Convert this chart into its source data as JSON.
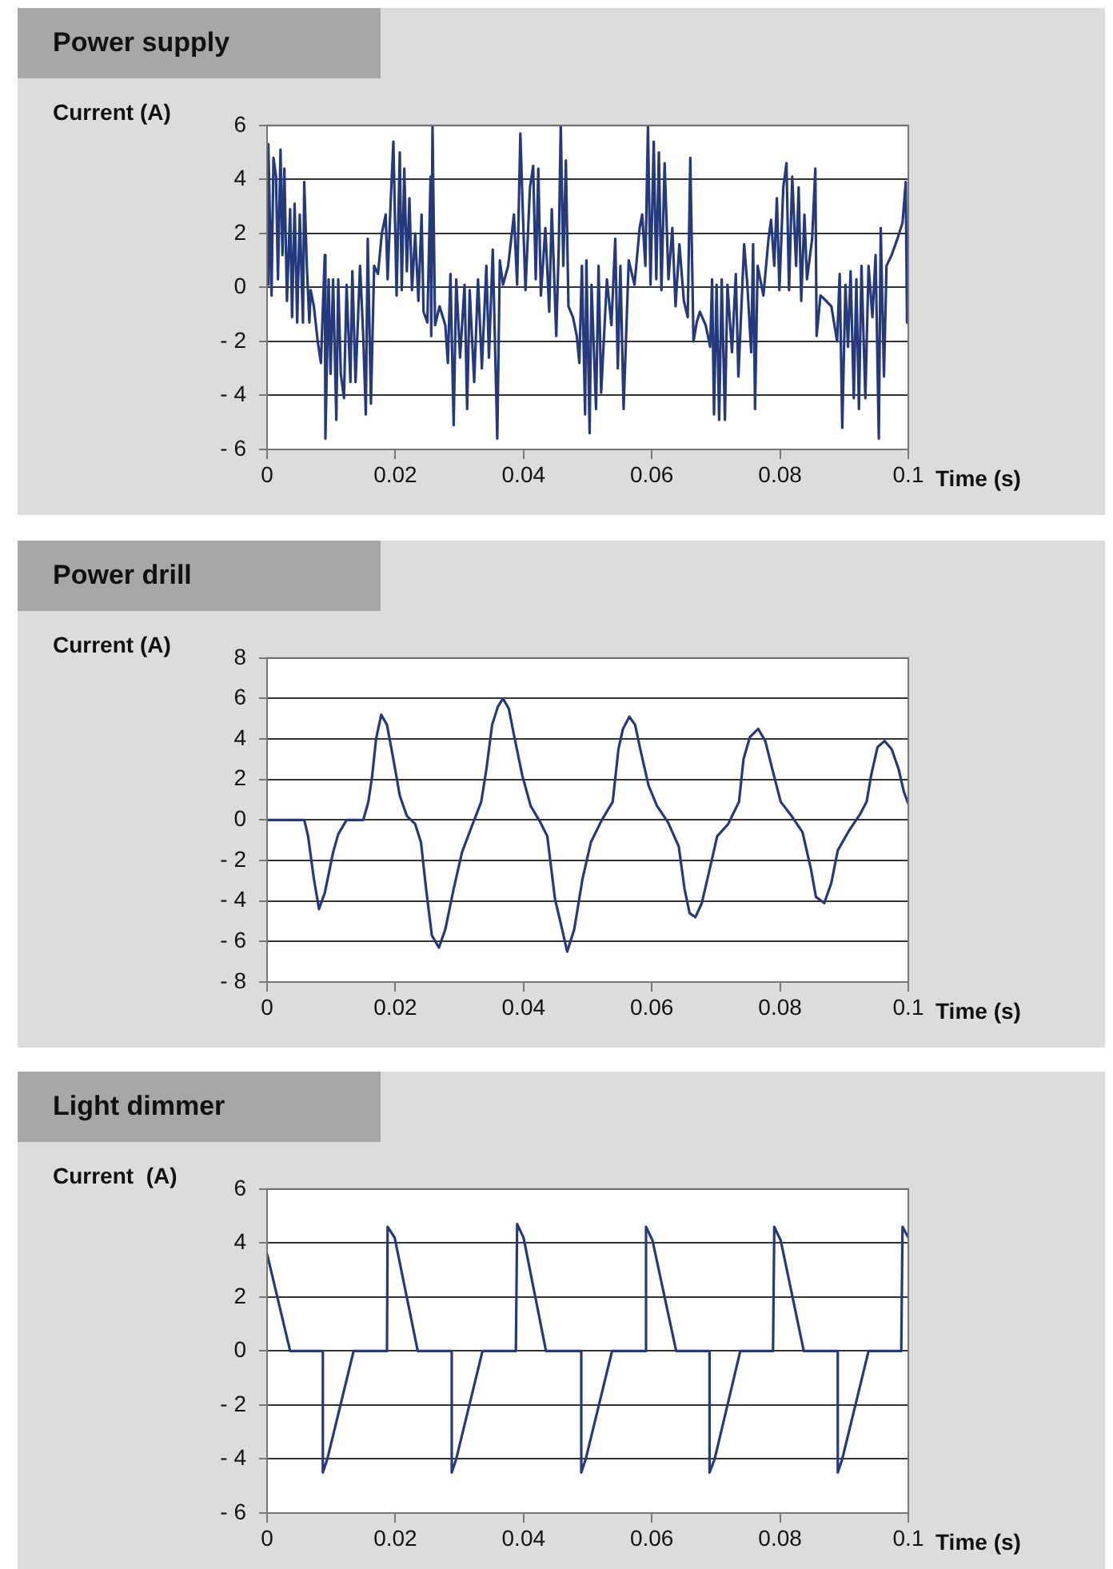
{
  "chart_data": [
    {
      "type": "line",
      "title": "Power supply",
      "ylabel": "Current (A)",
      "xlabel": "Time (s)",
      "color": "#253a7c",
      "marker": "none",
      "grid": "y",
      "xlim": [
        0,
        0.1
      ],
      "xticks": [
        0,
        0.02,
        0.04,
        0.06,
        0.08,
        0.1
      ],
      "ylim": [
        -6,
        6
      ],
      "yticks": [
        {
          "value": -6,
          "label": "- 6"
        },
        {
          "value": -4,
          "label": "- 4"
        },
        {
          "value": -2,
          "label": "- 2"
        },
        0,
        2,
        4,
        6
      ],
      "x": [
        0,
        0.0002,
        0.0007,
        0.001,
        0.0014,
        0.0017,
        0.0021,
        0.0024,
        0.0027,
        0.0031,
        0.0036,
        0.0039,
        0.0043,
        0.0047,
        0.0051,
        0.0056,
        0.0058,
        0.0062,
        0.0066,
        0.0068,
        0.0073,
        0.0079,
        0.0084,
        0.009,
        0.0091,
        0.0096,
        0.0099,
        0.0103,
        0.0108,
        0.0111,
        0.0115,
        0.012,
        0.0124,
        0.013,
        0.0133,
        0.0138,
        0.0145,
        0.015,
        0.0154,
        0.0157,
        0.0162,
        0.0167,
        0.0173,
        0.0179,
        0.0185,
        0.0188,
        0.0193,
        0.0197,
        0.0202,
        0.0207,
        0.021,
        0.0214,
        0.0218,
        0.0222,
        0.0226,
        0.0231,
        0.0236,
        0.0241,
        0.0244,
        0.025,
        0.0255,
        0.0256,
        0.0258,
        0.0262,
        0.0269,
        0.0278,
        0.0282,
        0.0286,
        0.0291,
        0.0295,
        0.0301,
        0.0308,
        0.0312,
        0.0316,
        0.0323,
        0.0329,
        0.0335,
        0.0342,
        0.0346,
        0.0352,
        0.0359,
        0.0363,
        0.0368,
        0.0376,
        0.0385,
        0.039,
        0.0395,
        0.0399,
        0.0403,
        0.041,
        0.0415,
        0.0419,
        0.0423,
        0.0427,
        0.0434,
        0.044,
        0.0444,
        0.0451,
        0.0455,
        0.0458,
        0.0462,
        0.0466,
        0.047,
        0.0477,
        0.0483,
        0.0487,
        0.0491,
        0.0496,
        0.0498,
        0.0503,
        0.0506,
        0.0513,
        0.0517,
        0.0521,
        0.053,
        0.0537,
        0.0543,
        0.0547,
        0.0551,
        0.0556,
        0.0564,
        0.0573,
        0.0581,
        0.0585,
        0.059,
        0.0594,
        0.0598,
        0.0603,
        0.0607,
        0.0611,
        0.0615,
        0.062,
        0.0626,
        0.0632,
        0.0637,
        0.0643,
        0.065,
        0.0656,
        0.066,
        0.0665,
        0.067,
        0.0675,
        0.0684,
        0.0691,
        0.0694,
        0.0697,
        0.0701,
        0.0705,
        0.0709,
        0.0714,
        0.0718,
        0.0725,
        0.0731,
        0.0735,
        0.0744,
        0.0749,
        0.0755,
        0.0758,
        0.0761,
        0.0765,
        0.0774,
        0.0782,
        0.0786,
        0.0791,
        0.0795,
        0.0799,
        0.0805,
        0.081,
        0.0814,
        0.0819,
        0.0825,
        0.0829,
        0.0833,
        0.0838,
        0.0842,
        0.085,
        0.0855,
        0.0857,
        0.0863,
        0.0872,
        0.088,
        0.0889,
        0.0893,
        0.0897,
        0.0902,
        0.0906,
        0.091,
        0.0915,
        0.0919,
        0.0923,
        0.0927,
        0.0933,
        0.0938,
        0.0944,
        0.0949,
        0.0954,
        0.0957,
        0.0962,
        0.0966,
        0.0974,
        0.0983,
        0.0991,
        0.0996,
        0.0998,
        0.1
      ],
      "values": [
        0.1,
        5.3,
        -0.3,
        4.8,
        4.1,
        0.3,
        5.1,
        1.2,
        4.4,
        -0.5,
        2.9,
        -1.1,
        3.1,
        -1.3,
        2.7,
        -1.3,
        3.9,
        0.8,
        -1.3,
        -0.1,
        -0.7,
        -2.0,
        -2.8,
        1.2,
        -5.6,
        0.3,
        -3.2,
        0.3,
        -4.9,
        0.3,
        -3.2,
        -4.1,
        0.1,
        -3.5,
        0.6,
        -3.5,
        0.8,
        -1.8,
        -4.7,
        1.8,
        -4.3,
        0.8,
        0.5,
        2.0,
        2.7,
        0.3,
        3.3,
        5.4,
        -0.3,
        5.0,
        -0.1,
        4.4,
        0.6,
        3.3,
        -0.1,
        2.0,
        -0.5,
        2.7,
        -0.9,
        -1.3,
        4.1,
        -1.8,
        6.0,
        -1.4,
        -0.7,
        -1.4,
        -2.8,
        0.5,
        -5.1,
        0.3,
        -2.6,
        0.1,
        -4.5,
        -0.1,
        -3.5,
        0.3,
        -3.0,
        0.8,
        -2.6,
        1.4,
        -5.6,
        1.0,
        0.1,
        0.8,
        2.7,
        0.1,
        5.7,
        2.7,
        -0.1,
        3.7,
        4.5,
        0.3,
        4.4,
        -0.3,
        2.2,
        -0.9,
        2.9,
        -1.8,
        1.6,
        6.0,
        0.8,
        4.7,
        -0.7,
        -1.1,
        -1.8,
        -2.8,
        0.8,
        -4.7,
        1.0,
        -5.4,
        0.1,
        -4.5,
        0.8,
        -3.9,
        0.3,
        -1.4,
        1.8,
        -3.0,
        0.8,
        -4.5,
        1.0,
        0.1,
        2.2,
        2.7,
        0.8,
        6.0,
        0.1,
        5.4,
        0.3,
        5.0,
        -0.1,
        4.6,
        0.3,
        2.2,
        -0.7,
        1.6,
        -0.5,
        -1.1,
        4.8,
        -2.0,
        -1.3,
        -0.9,
        -1.4,
        -2.2,
        0.3,
        -4.7,
        0.1,
        -4.9,
        0.3,
        -4.9,
        0.1,
        -2.4,
        0.5,
        -3.3,
        1.6,
        0.1,
        -2.4,
        1.6,
        -4.5,
        0.8,
        -0.3,
        1.8,
        2.5,
        0.8,
        3.3,
        -0.1,
        3.7,
        4.6,
        -0.1,
        4.1,
        0.8,
        3.7,
        -0.5,
        2.7,
        0.3,
        1.8,
        4.4,
        -1.8,
        -0.3,
        -0.5,
        -0.7,
        -2.0,
        0.5,
        -5.2,
        0.1,
        -2.2,
        0.6,
        -4.1,
        0.3,
        -4.5,
        0.8,
        -4.1,
        0.8,
        -1.1,
        1.2,
        -5.6,
        2.2,
        -3.3,
        0.8,
        1.2,
        1.8,
        2.4,
        3.9,
        -1.3,
        1.8
      ]
    },
    {
      "type": "line",
      "title": "Power drill",
      "ylabel": "Current (A)",
      "xlabel": "Time (s)",
      "color": "#253a7c",
      "marker": "none",
      "grid": "y",
      "xlim": [
        0,
        0.1
      ],
      "xticks": [
        0,
        0.02,
        0.04,
        0.06,
        0.08,
        0.1
      ],
      "ylim": [
        -8,
        8
      ],
      "yticks": [
        {
          "value": -8,
          "label": "- 8"
        },
        {
          "value": -6,
          "label": "- 6"
        },
        {
          "value": -4,
          "label": "- 4"
        },
        {
          "value": -2,
          "label": "- 2"
        },
        0,
        2,
        4,
        6,
        8
      ],
      "x": [
        0,
        0.0058,
        0.0064,
        0.0073,
        0.0081,
        0.009,
        0.0103,
        0.0111,
        0.0124,
        0.015,
        0.0158,
        0.0164,
        0.017,
        0.0178,
        0.0187,
        0.0197,
        0.0207,
        0.0218,
        0.0231,
        0.024,
        0.0248,
        0.0257,
        0.0268,
        0.0278,
        0.0291,
        0.0304,
        0.0317,
        0.0334,
        0.0342,
        0.0351,
        0.036,
        0.0368,
        0.0377,
        0.0385,
        0.0398,
        0.0411,
        0.0426,
        0.0437,
        0.0449,
        0.0458,
        0.0468,
        0.0479,
        0.0492,
        0.0505,
        0.0522,
        0.0539,
        0.0548,
        0.0555,
        0.0565,
        0.0574,
        0.0582,
        0.0595,
        0.0608,
        0.0625,
        0.0642,
        0.0651,
        0.0659,
        0.0668,
        0.0678,
        0.0689,
        0.0702,
        0.0719,
        0.0736,
        0.0743,
        0.0753,
        0.0766,
        0.0777,
        0.0788,
        0.0801,
        0.0818,
        0.0835,
        0.0848,
        0.0856,
        0.0869,
        0.088,
        0.089,
        0.0908,
        0.0925,
        0.0935,
        0.0942,
        0.0952,
        0.0963,
        0.0974,
        0.0985,
        0.0993,
        0.1
      ],
      "values": [
        0,
        0,
        -0.8,
        -2.9,
        -4.4,
        -3.6,
        -1.6,
        -0.7,
        0,
        0,
        0.9,
        2.2,
        4.0,
        5.2,
        4.7,
        3.0,
        1.2,
        0.2,
        -0.2,
        -1.1,
        -3.4,
        -5.7,
        -6.3,
        -5.4,
        -3.4,
        -1.6,
        -0.5,
        0.9,
        2.5,
        4.7,
        5.6,
        6.0,
        5.5,
        4.2,
        2.2,
        0.7,
        -0.1,
        -0.8,
        -3.9,
        -5.1,
        -6.5,
        -5.4,
        -2.9,
        -1.1,
        0,
        0.9,
        3.5,
        4.5,
        5.1,
        4.7,
        3.5,
        1.7,
        0.7,
        -0.1,
        -1.3,
        -3.4,
        -4.6,
        -4.8,
        -4.1,
        -2.6,
        -0.8,
        -0.2,
        0.9,
        3.0,
        4.1,
        4.5,
        3.9,
        2.5,
        0.9,
        0.2,
        -0.6,
        -2.4,
        -3.8,
        -4.1,
        -3.1,
        -1.5,
        -0.5,
        0.3,
        0.9,
        2.2,
        3.6,
        3.9,
        3.5,
        2.5,
        1.4,
        0.8
      ]
    },
    {
      "type": "line",
      "title": "Light dimmer",
      "ylabel": "Current  (A)",
      "xlabel": "Time (s)",
      "color": "#253a7c",
      "marker": "none",
      "grid": "y",
      "xlim": [
        0,
        0.1
      ],
      "xticks": [
        0,
        0.02,
        0.04,
        0.06,
        0.08,
        0.1
      ],
      "ylim": [
        -6,
        6
      ],
      "yticks": [
        {
          "value": -6,
          "label": "- 6"
        },
        {
          "value": -4,
          "label": "- 4"
        },
        {
          "value": -2,
          "label": "- 2"
        },
        0,
        2,
        4,
        6
      ],
      "x": [
        0,
        0.0036,
        0.0087,
        0.0087,
        0.0094,
        0.0135,
        0.0187,
        0.0188,
        0.0199,
        0.0235,
        0.0288,
        0.0288,
        0.0295,
        0.0336,
        0.0388,
        0.039,
        0.04,
        0.0435,
        0.049,
        0.049,
        0.0497,
        0.0538,
        0.0589,
        0.0591,
        0.0601,
        0.0638,
        0.069,
        0.069,
        0.0698,
        0.0738,
        0.0789,
        0.0791,
        0.0801,
        0.0837,
        0.089,
        0.089,
        0.0897,
        0.0938,
        0.0989,
        0.0991,
        0.1
      ],
      "values": [
        3.6,
        0,
        0,
        -4.5,
        -4.0,
        0,
        0,
        4.6,
        4.2,
        0,
        0,
        -4.5,
        -4.0,
        0,
        0,
        4.7,
        4.2,
        0,
        0,
        -4.5,
        -4.0,
        0,
        0,
        4.6,
        4.1,
        0,
        0,
        -4.5,
        -4.0,
        0,
        0,
        4.6,
        4.1,
        0,
        0,
        -4.5,
        -4.0,
        0,
        0,
        4.6,
        4.2
      ]
    }
  ]
}
